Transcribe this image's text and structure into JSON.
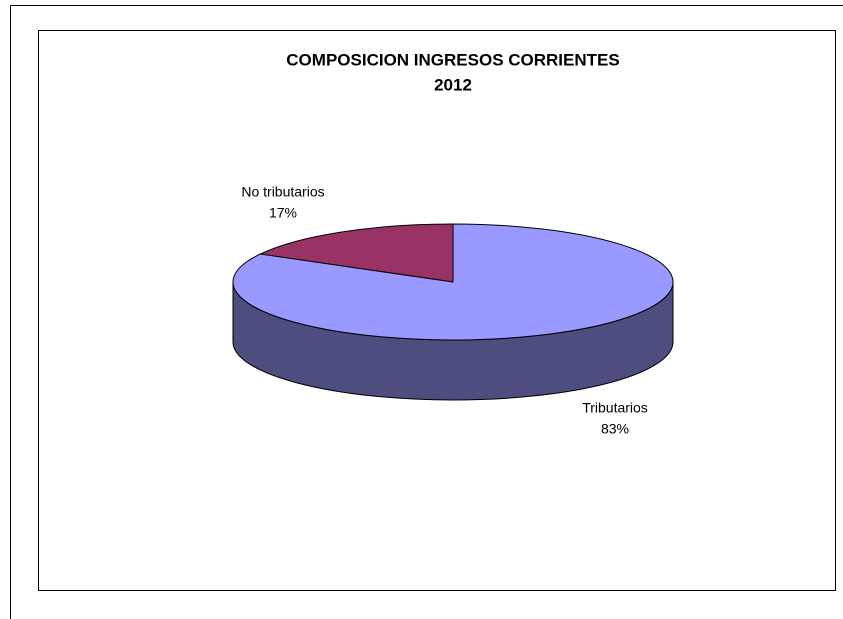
{
  "chart_data": {
    "type": "pie3d",
    "title": "COMPOSICION INGRESOS CORRIENTES",
    "subtitle": "2012",
    "categories": [
      "Tributarios",
      "No tributarios"
    ],
    "values": [
      83,
      17
    ],
    "value_labels": [
      "83%",
      "17%"
    ],
    "colors": [
      "#9999ff",
      "#993366"
    ],
    "side_colors": [
      "#4d4d80",
      "#4d1a33"
    ]
  }
}
